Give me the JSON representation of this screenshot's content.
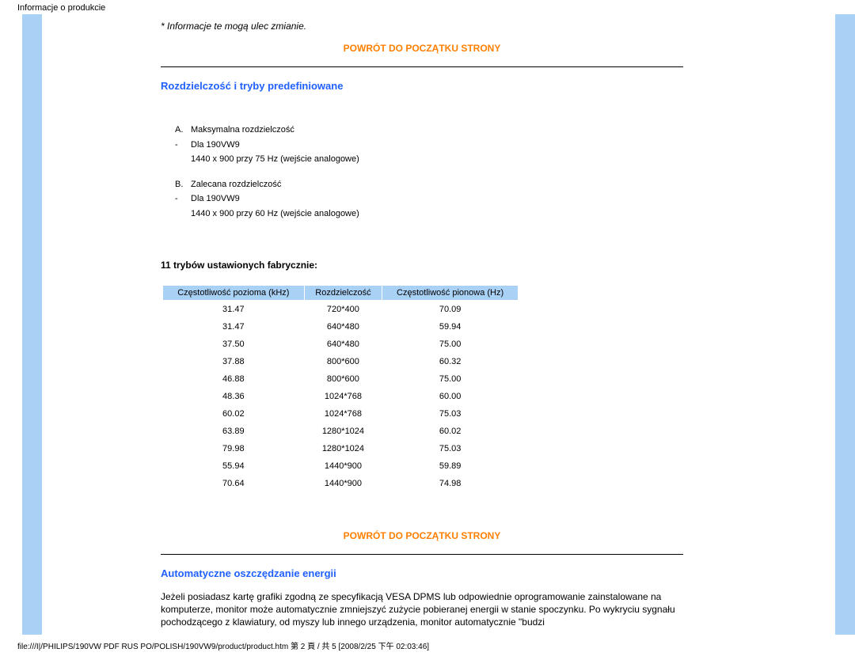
{
  "topLabel": "Informacje o produkcie",
  "note": "* Informacje te mogą ulec zmianie.",
  "backToTop": "POWRÓT DO POCZĄTKU STRONY",
  "section1": {
    "title": "Rozdzielczość i tryby predefiniowane",
    "items": [
      {
        "label": "A.",
        "text": "Maksymalna rozdzielczość"
      },
      {
        "label": "-",
        "text": "Dla 190VW9"
      },
      {
        "label": "",
        "text": "1440 x 900 przy 75 Hz (wejście analogowe)"
      },
      {
        "label": "B.",
        "text": "Zalecana rozdzielczość"
      },
      {
        "label": "-",
        "text": "Dla 190VW9"
      },
      {
        "label": "",
        "text": "1440 x 900 przy 60 Hz (wejście analogowe)"
      }
    ],
    "factoryLabel": "11 trybów ustawionych fabrycznie:",
    "table": {
      "headers": [
        "Częstotliwość pozioma (kHz)",
        "Rozdzielczość",
        "Częstotliwość pionowa (Hz)"
      ],
      "rows": [
        [
          "31.47",
          "720*400",
          "70.09"
        ],
        [
          "31.47",
          "640*480",
          "59.94"
        ],
        [
          "37.50",
          "640*480",
          "75.00"
        ],
        [
          "37.88",
          "800*600",
          "60.32"
        ],
        [
          "46.88",
          "800*600",
          "75.00"
        ],
        [
          "48.36",
          "1024*768",
          "60.00"
        ],
        [
          "60.02",
          "1024*768",
          "75.03"
        ],
        [
          "63.89",
          "1280*1024",
          "60.02"
        ],
        [
          "79.98",
          "1280*1024",
          "75.03"
        ],
        [
          "55.94",
          "1440*900",
          "59.89"
        ],
        [
          "70.64",
          "1440*900",
          "74.98"
        ]
      ]
    }
  },
  "section2": {
    "title": "Automatyczne oszczędzanie energii",
    "text": "Jeżeli posiadasz kartę grafiki zgodną ze specyfikacją VESA DPMS lub odpowiednie oprogramowanie zainstalowane na komputerze, monitor może automatycznie zmniejszyć zużycie pobieranej energii w stanie spoczynku. Po wykryciu sygnału pochodzącego z klawiatury, od myszy lub innego urządzenia, monitor automatycznie \"budzi"
  },
  "footerPath": "file:///I|/PHILIPS/190VW PDF RUS PO/POLISH/190VW9/product/product.htm 第 2 頁 / 共 5 [2008/2/25 下午 02:03:46]"
}
